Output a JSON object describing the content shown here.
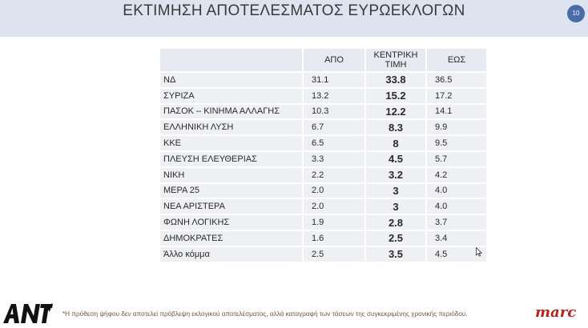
{
  "slide": {
    "title": "ΕΚΤΙΜΗΣΗ ΑΠΟΤΕΛΕΣΜΑΤΟΣ ΕΥΡΩΕΚΛΟΓΩΝ",
    "page_number": "10"
  },
  "table": {
    "headers": {
      "party": "",
      "low": "ΑΠΟ",
      "mid": "ΚΕΝΤΡΙΚΗ ΤΙΜΗ",
      "high": "ΕΩΣ"
    },
    "rows": [
      {
        "party": "ΝΔ",
        "low": "31.1",
        "mid": "33.8",
        "high": "36.5"
      },
      {
        "party": "ΣΥΡΙΖΑ",
        "low": "13.2",
        "mid": "15.2",
        "high": "17.2"
      },
      {
        "party": "ΠΑΣΟΚ – ΚΙΝΗΜΑ ΑΛΛΑΓΗΣ",
        "low": "10.3",
        "mid": "12.2",
        "high": "14.1"
      },
      {
        "party": "ΕΛΛΗΝΙΚΗ ΛΥΣΗ",
        "low": "6.7",
        "mid": "8.3",
        "high": "9.9"
      },
      {
        "party": "ΚΚΕ",
        "low": "6.5",
        "mid": "8",
        "high": "9.5"
      },
      {
        "party": "ΠΛΕΥΣΗ ΕΛΕΥΘΕΡΙΑΣ",
        "low": "3.3",
        "mid": "4.5",
        "high": "5.7"
      },
      {
        "party": "ΝΙΚΗ",
        "low": "2.2",
        "mid": "3.2",
        "high": "4.2"
      },
      {
        "party": "ΜΕΡΑ 25",
        "low": "2.0",
        "mid": "3",
        "high": "4.0"
      },
      {
        "party": "ΝΕΑ ΑΡΙΣΤΕΡΑ",
        "low": "2.0",
        "mid": "3",
        "high": "4.0"
      },
      {
        "party": "ΦΩΝΗ ΛΟΓΙΚΗΣ",
        "low": "1.9",
        "mid": "2.8",
        "high": "3.7"
      },
      {
        "party": "ΔΗΜΟΚΡΑΤΕΣ",
        "low": "1.6",
        "mid": "2.5",
        "high": "3.4"
      },
      {
        "party": "Άλλο κόμμα",
        "low": "2.5",
        "mid": "3.5",
        "high": "4.5"
      }
    ]
  },
  "footer": {
    "note": "*Η πρόθεση ψήφου δεν αποτελεί πρόβλεψη εκλογικού αποτελέσματος, αλλά καταγραφή των τάσεων της συγκεκριμένης χρονικής περιόδου.",
    "left_logo": "ANT1",
    "right_logo": "marc"
  },
  "colors": {
    "header_band": "#dde3ef",
    "badge": "#4a6aa8",
    "cell": "#eef0f4",
    "marc_red": "#b3261e"
  }
}
